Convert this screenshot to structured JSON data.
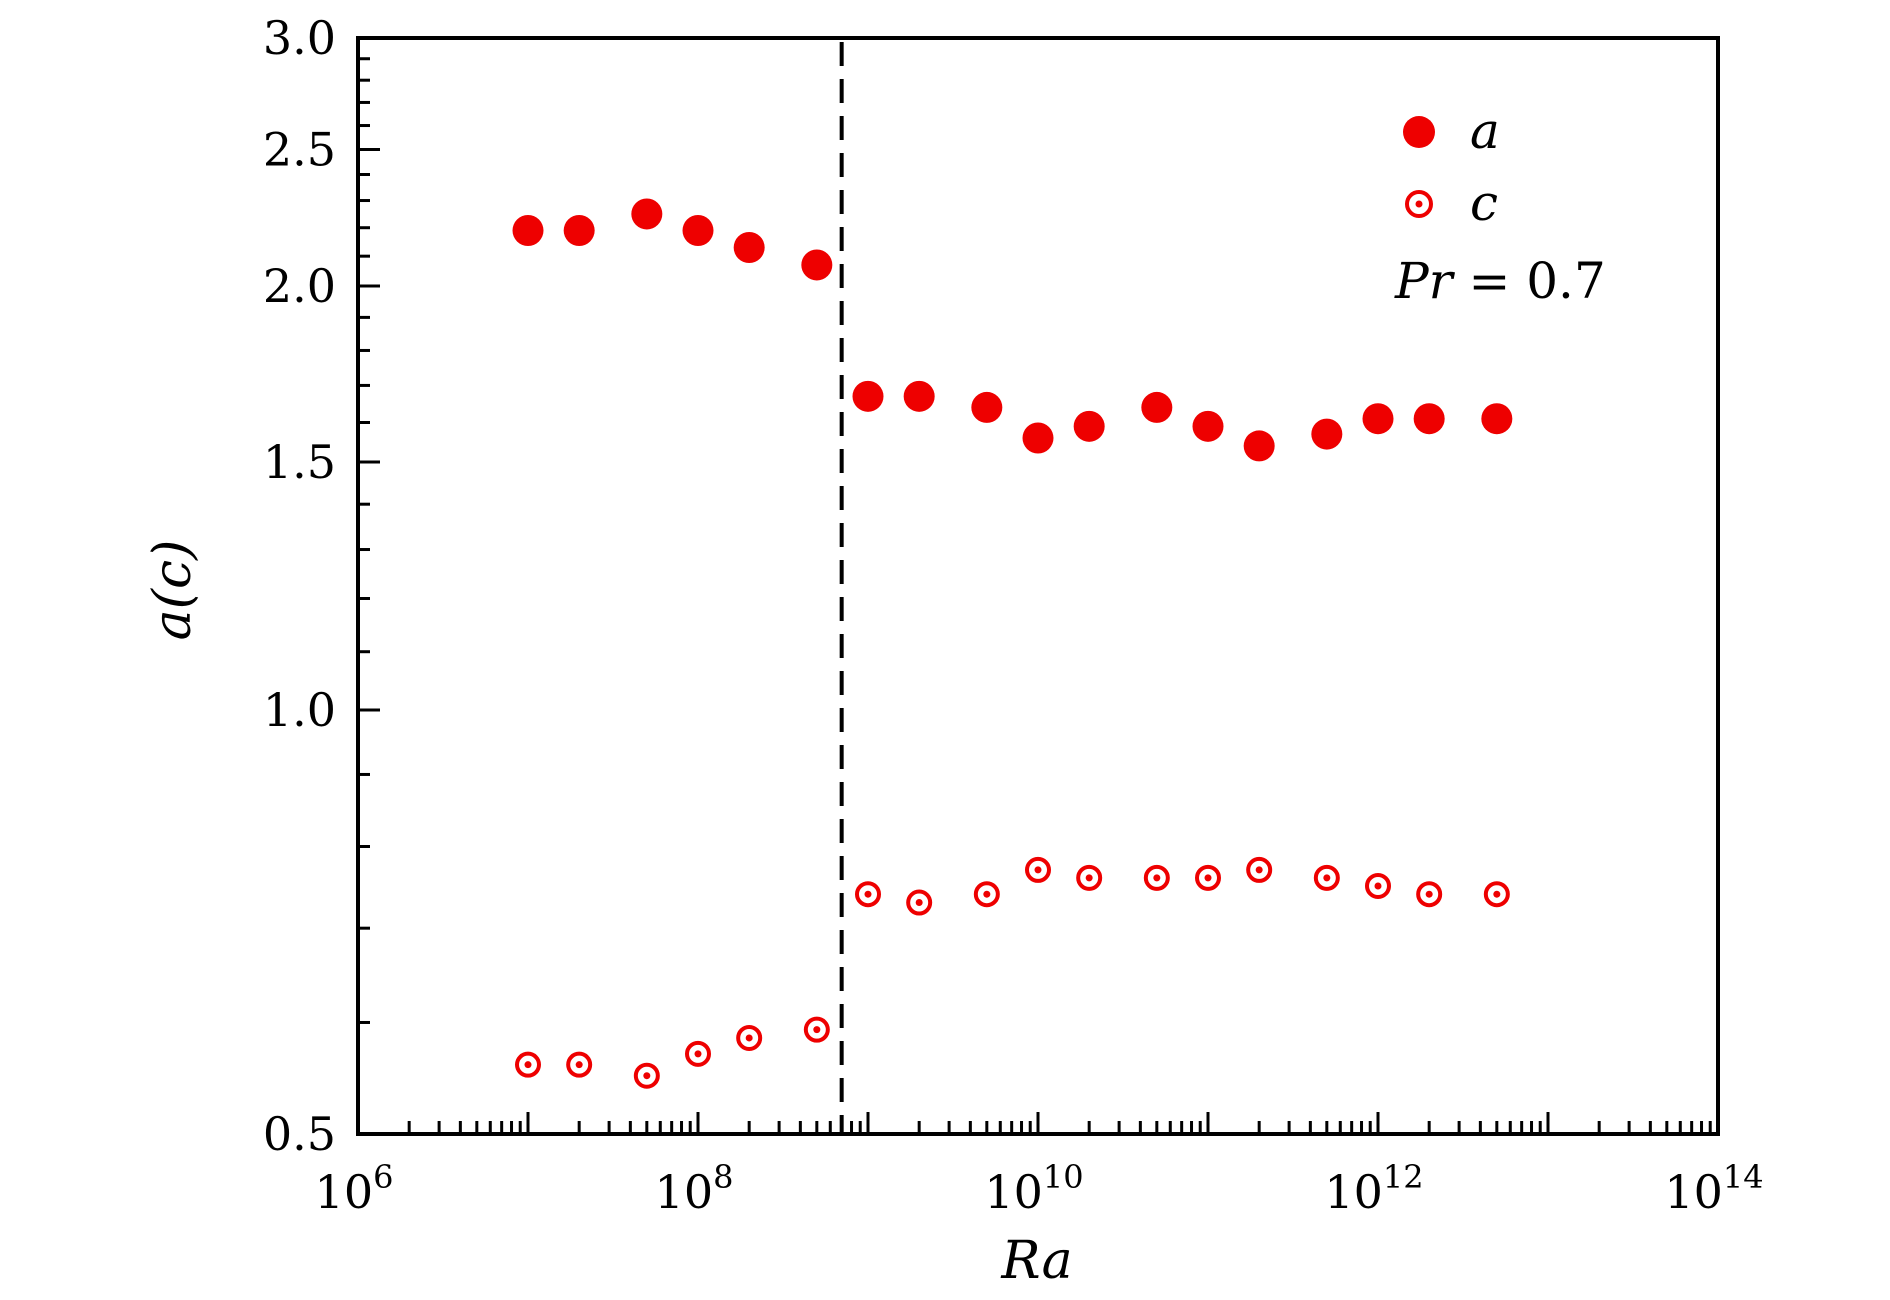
{
  "chart_data": {
    "type": "scatter",
    "xlabel": "Ra",
    "ylabel": "a(c)",
    "x_scale": "log",
    "y_scale": "log",
    "xlim": [
      1000000.0,
      100000000000000.0
    ],
    "ylim": [
      0.5,
      3.0
    ],
    "x_tick_labels": [
      {
        "base": "10",
        "exp": "6",
        "value": 1000000.0
      },
      {
        "base": "10",
        "exp": "8",
        "value": 100000000.0
      },
      {
        "base": "10",
        "exp": "10",
        "value": 10000000000.0
      },
      {
        "base": "10",
        "exp": "12",
        "value": 1000000000000.0
      },
      {
        "base": "10",
        "exp": "14",
        "value": 100000000000000.0
      }
    ],
    "y_tick_labels": [
      {
        "text": "0.5",
        "value": 0.5
      },
      {
        "text": "1.0",
        "value": 1.0
      },
      {
        "text": "1.5",
        "value": 1.5
      },
      {
        "text": "2.0",
        "value": 2.0
      },
      {
        "text": "2.5",
        "value": 2.5
      },
      {
        "text": "3.0",
        "value": 3.0
      }
    ],
    "annotation": {
      "var": "Pr",
      "eq": " = ",
      "value": "0.7"
    },
    "transition_line_x": 700000000.0,
    "series": [
      {
        "name": "a",
        "marker": "filled-circle",
        "color": "#ee0000",
        "points": [
          [
            10000000.0,
            2.19
          ],
          [
            20000000.0,
            2.19
          ],
          [
            50000000.0,
            2.25
          ],
          [
            100000000.0,
            2.19
          ],
          [
            200000000.0,
            2.13
          ],
          [
            500000000.0,
            2.07
          ],
          [
            1000000000.0,
            1.67
          ],
          [
            2000000000.0,
            1.67
          ],
          [
            5000000000.0,
            1.64
          ],
          [
            10000000000.0,
            1.56
          ],
          [
            20000000000.0,
            1.59
          ],
          [
            50000000000.0,
            1.64
          ],
          [
            100000000000.0,
            1.59
          ],
          [
            200000000000.0,
            1.54
          ],
          [
            500000000000.0,
            1.57
          ],
          [
            1000000000000.0,
            1.61
          ],
          [
            2000000000000.0,
            1.61
          ],
          [
            5000000000000.0,
            1.61
          ]
        ]
      },
      {
        "name": "c",
        "marker": "open-circle-dot",
        "color": "#ee0000",
        "points": [
          [
            10000000.0,
            0.56
          ],
          [
            20000000.0,
            0.56
          ],
          [
            50000000.0,
            0.55
          ],
          [
            100000000.0,
            0.57
          ],
          [
            200000000.0,
            0.585
          ],
          [
            500000000.0,
            0.593
          ],
          [
            1000000000.0,
            0.74
          ],
          [
            2000000000.0,
            0.73
          ],
          [
            5000000000.0,
            0.74
          ],
          [
            10000000000.0,
            0.77
          ],
          [
            20000000000.0,
            0.76
          ],
          [
            50000000000.0,
            0.76
          ],
          [
            100000000000.0,
            0.76
          ],
          [
            200000000000.0,
            0.77
          ],
          [
            500000000000.0,
            0.76
          ],
          [
            1000000000000.0,
            0.75
          ],
          [
            2000000000000.0,
            0.74
          ],
          [
            5000000000000.0,
            0.74
          ]
        ]
      }
    ]
  }
}
